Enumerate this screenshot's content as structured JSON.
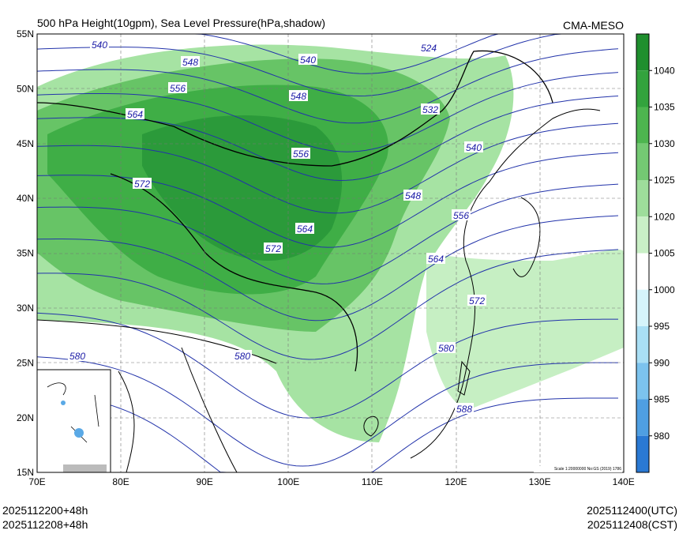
{
  "header": {
    "title": "500 hPa Height(10gpm), Sea Level Pressure(hPa,shadow)",
    "source": "CMA-MESO"
  },
  "axes": {
    "lat_labels": [
      "55N",
      "50N",
      "45N",
      "40N",
      "35N",
      "30N",
      "25N",
      "20N",
      "15N"
    ],
    "lon_labels": [
      "70E",
      "80E",
      "90E",
      "100E",
      "110E",
      "120E",
      "130E",
      "140E"
    ]
  },
  "colorbar": {
    "labels": [
      1040,
      1035,
      1030,
      1025,
      1020,
      1005,
      1000,
      995,
      990,
      985,
      980
    ]
  },
  "contour_labels": [
    540,
    548,
    540,
    524,
    556,
    548,
    532,
    564,
    556,
    540,
    572,
    548,
    556,
    564,
    572,
    564,
    572,
    580,
    580,
    580,
    588
  ],
  "scale_note": "Scale 1:20000000 No:GS (2019) 1786",
  "footer": {
    "init_utc": "2025112200+48h",
    "init_cst": "2025112208+48h",
    "valid_utc": "2025112400(UTC)",
    "valid_cst": "2025112408(CST)"
  }
}
